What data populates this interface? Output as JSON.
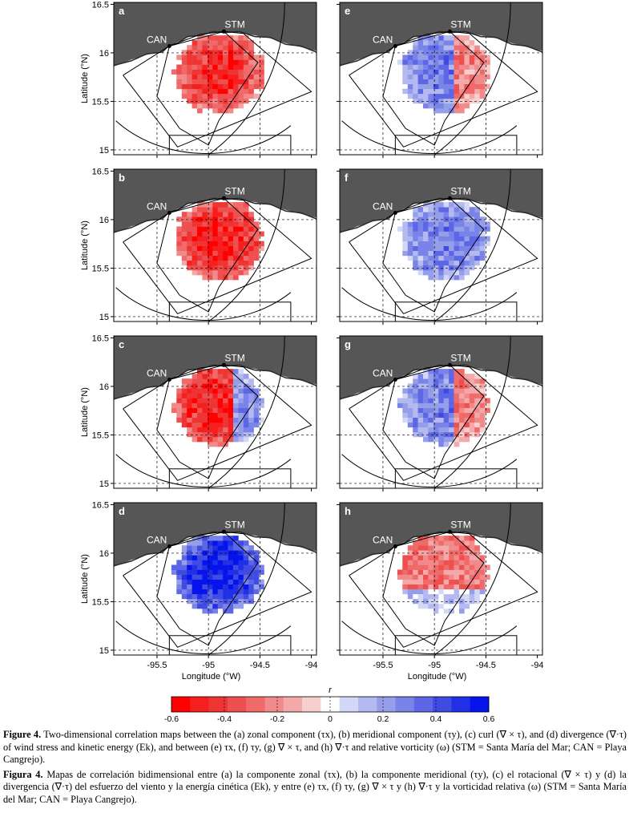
{
  "figure": {
    "ylabel": "Latitude (°N)",
    "xlabel": "Longitude (°W)",
    "y_ticks": [
      "16.5",
      "16",
      "15.5",
      "15"
    ],
    "x_ticks": [
      "-95.5",
      "-95",
      "-94.5",
      "-94"
    ],
    "station_labels": {
      "stm": "STM",
      "can": "CAN"
    },
    "colorbar": {
      "label": "r",
      "ticks": [
        "-0.6",
        "-0.4",
        "-0.2",
        "0",
        "0.2",
        "0.4",
        "0.6"
      ],
      "range": [
        -0.6,
        0.6
      ],
      "colors": [
        "#ff0000",
        "#f51f1f",
        "#ef3434",
        "#ee5050",
        "#f06a6a",
        "#f18a8a",
        "#f3a9a9",
        "#f8cfcf",
        "#ffffff",
        "#d4d8f7",
        "#b4baf0",
        "#949ee9",
        "#7a84e8",
        "#5d67e5",
        "#3f4be3",
        "#2230e5",
        "#0514ec"
      ],
      "color_negative": "#ff0000",
      "color_positive": "#0000ff"
    },
    "panels": [
      {
        "id": "a",
        "label": "a",
        "mean_r": -0.45,
        "pattern": "uniform"
      },
      {
        "id": "b",
        "label": "b",
        "mean_r": -0.5,
        "pattern": "uniform"
      },
      {
        "id": "c",
        "label": "c",
        "mean_r": 0.0,
        "pattern": "red-west-blue-east"
      },
      {
        "id": "d",
        "label": "d",
        "mean_r": 0.55,
        "pattern": "uniform"
      },
      {
        "id": "e",
        "label": "e",
        "mean_r": 0.1,
        "pattern": "blue-west-red-east"
      },
      {
        "id": "f",
        "label": "f",
        "mean_r": 0.3,
        "pattern": "uniform"
      },
      {
        "id": "g",
        "label": "g",
        "mean_r": 0.0,
        "pattern": "blue-west-red-east"
      },
      {
        "id": "h",
        "label": "h",
        "mean_r": -0.2,
        "pattern": "mixed"
      }
    ]
  },
  "caption": {
    "en": {
      "fig": "Figure 4.",
      "text": "Two-dimensional correlation maps between the (a) zonal component (τx), (b) meridional component (τy), (c) curl (∇ × τ), and (d) divergence (∇·τ) of wind stress and kinetic energy (Ek), and between (e) τx, (f) τy, (g) ∇ × τ, and (h) ∇·τ and relative vorticity (ω) (STM = Santa María del Mar; CAN = Playa Cangrejo)."
    },
    "es": {
      "fig": "Figura 4.",
      "text": "Mapas de correlación bidimensional entre (a) la componente zonal (τx), (b) la componente meridional (τy), (c) el rotacional (∇ × τ) y (d) la divergencia (∇·τ) del esfuerzo del viento y la energía cinética (Ek), y entre (e) τx, (f) τy, (g) ∇ × τ y (h) ∇·τ y la vorticidad relativa (ω) (STM = Santa María del Mar; CAN = Playa Cangrejo)."
    }
  }
}
